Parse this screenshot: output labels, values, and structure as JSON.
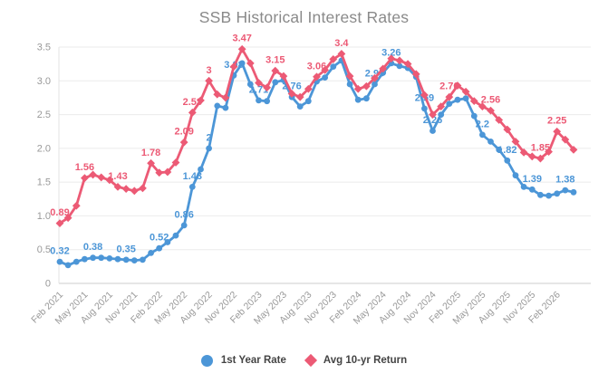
{
  "title": "SSB Historical Interest Rates",
  "legend": [
    {
      "label": "1st Year Rate",
      "color": "#4C96D7",
      "marker": "circle"
    },
    {
      "label": "Avg 10-yr Return",
      "color": "#EC5A75",
      "marker": "diamond"
    }
  ],
  "chart_data": {
    "type": "line",
    "title": "SSB Historical Interest Rates",
    "xlabel": "",
    "ylabel": "",
    "ylim": [
      0,
      3.5
    ],
    "grid": true,
    "legend_position": "bottom",
    "y_ticks": [
      0,
      0.5,
      1.0,
      1.5,
      2.0,
      2.5,
      3.0,
      3.5
    ],
    "y_tick_labels": [
      "0",
      "0.5",
      "1.0",
      "1.5",
      "2.0",
      "2.5",
      "3.0",
      "3.5"
    ],
    "x": [
      "Feb 2021",
      "Mar 2021",
      "Apr 2021",
      "May 2021",
      "Jun 2021",
      "Jul 2021",
      "Aug 2021",
      "Sep 2021",
      "Oct 2021",
      "Nov 2021",
      "Dec 2021",
      "Jan 2022",
      "Feb 2022",
      "Mar 2022",
      "Apr 2022",
      "May 2022",
      "Jun 2022",
      "Jul 2022",
      "Aug 2022",
      "Sep 2022",
      "Oct 2022",
      "Nov 2022",
      "Dec 2022",
      "Jan 2023",
      "Feb 2023",
      "Mar 2023",
      "Apr 2023",
      "May 2023",
      "Jun 2023",
      "Jul 2023",
      "Aug 2023",
      "Sep 2023",
      "Oct 2023",
      "Nov 2023",
      "Dec 2023",
      "Jan 2024",
      "Feb 2024",
      "Mar 2024",
      "Apr 2024",
      "May 2024",
      "Jun 2024",
      "Jul 2024",
      "Aug 2024",
      "Sep 2024",
      "Oct 2024",
      "Nov 2024",
      "Dec 2024",
      "Jan 2025",
      "Feb 2025",
      "Mar 2025",
      "Apr 2025",
      "May 2025",
      "Jun 2025",
      "Jul 2025",
      "Aug 2025",
      "Sep 2025",
      "Oct 2025",
      "Nov 2025",
      "Dec 2025",
      "Jan 2026",
      "Feb 2026",
      "Mar 2026",
      "Apr 2026"
    ],
    "x_tick_labels": [
      "Feb 2021",
      "May 2021",
      "Aug 2021",
      "Nov 2021",
      "Feb 2022",
      "May 2022",
      "Aug 2022",
      "Nov 2022",
      "Feb 2023",
      "May 2023",
      "Aug 2023",
      "Nov 2023",
      "Feb 2024",
      "May 2024",
      "Aug 2024",
      "Nov 2024",
      "Feb 2025",
      "May 2025",
      "Aug 2025",
      "Nov 2025",
      "Feb 2026"
    ],
    "x_tick_step": 3,
    "series": [
      {
        "name": "1st Year Rate",
        "color": "#4C96D7",
        "marker": "circle",
        "values": [
          0.32,
          0.27,
          0.32,
          0.36,
          0.38,
          0.38,
          0.37,
          0.36,
          0.35,
          0.34,
          0.35,
          0.45,
          0.52,
          0.61,
          0.71,
          0.86,
          1.43,
          1.69,
          2.0,
          2.63,
          2.6,
          3.08,
          3.26,
          2.95,
          2.71,
          2.7,
          2.98,
          3.01,
          2.76,
          2.62,
          2.7,
          2.99,
          3.05,
          3.21,
          3.3,
          2.95,
          2.72,
          2.74,
          2.95,
          3.12,
          3.26,
          3.22,
          3.19,
          3.06,
          2.59,
          2.26,
          2.5,
          2.66,
          2.72,
          2.74,
          2.48,
          2.2,
          2.1,
          1.98,
          1.82,
          1.6,
          1.43,
          1.39,
          1.31,
          1.3,
          1.33,
          1.38,
          1.35
        ],
        "point_labels": {
          "0": "0.32",
          "4": "0.38",
          "8": "0.35",
          "12": "0.52",
          "15": "0.86",
          "16": "1.43",
          "18": "2",
          "21": "3.08",
          "24": "2.71",
          "28": "2.76",
          "38": "2.95",
          "40": "3.26",
          "44": "2.59",
          "45": "2.26",
          "51": "2.2",
          "54": "1.82",
          "57": "1.39",
          "61": "1.38"
        }
      },
      {
        "name": "Avg 10-yr Return",
        "color": "#EC5A75",
        "marker": "diamond",
        "values": [
          0.89,
          0.97,
          1.15,
          1.56,
          1.61,
          1.57,
          1.53,
          1.43,
          1.4,
          1.37,
          1.41,
          1.78,
          1.64,
          1.65,
          1.79,
          2.09,
          2.53,
          2.71,
          3.0,
          2.8,
          2.75,
          3.21,
          3.47,
          3.26,
          2.97,
          2.9,
          3.15,
          3.07,
          2.81,
          2.76,
          2.88,
          3.06,
          3.16,
          3.32,
          3.4,
          3.07,
          2.88,
          2.92,
          3.04,
          3.18,
          3.33,
          3.3,
          3.25,
          3.1,
          2.79,
          2.5,
          2.62,
          2.76,
          2.93,
          2.84,
          2.7,
          2.62,
          2.56,
          2.42,
          2.28,
          2.1,
          1.94,
          1.88,
          1.85,
          1.95,
          2.25,
          2.13,
          1.98
        ],
        "point_labels": {
          "0": "0.89",
          "3": "1.56",
          "7": "1.43",
          "11": "1.78",
          "15": "2.09",
          "16": "2.53",
          "18": "3",
          "22": "3.47",
          "26": "3.15",
          "31": "3.06",
          "34": "3.4",
          "47": "2.76",
          "52": "2.56",
          "58": "1.85",
          "60": "2.25"
        }
      }
    ]
  }
}
